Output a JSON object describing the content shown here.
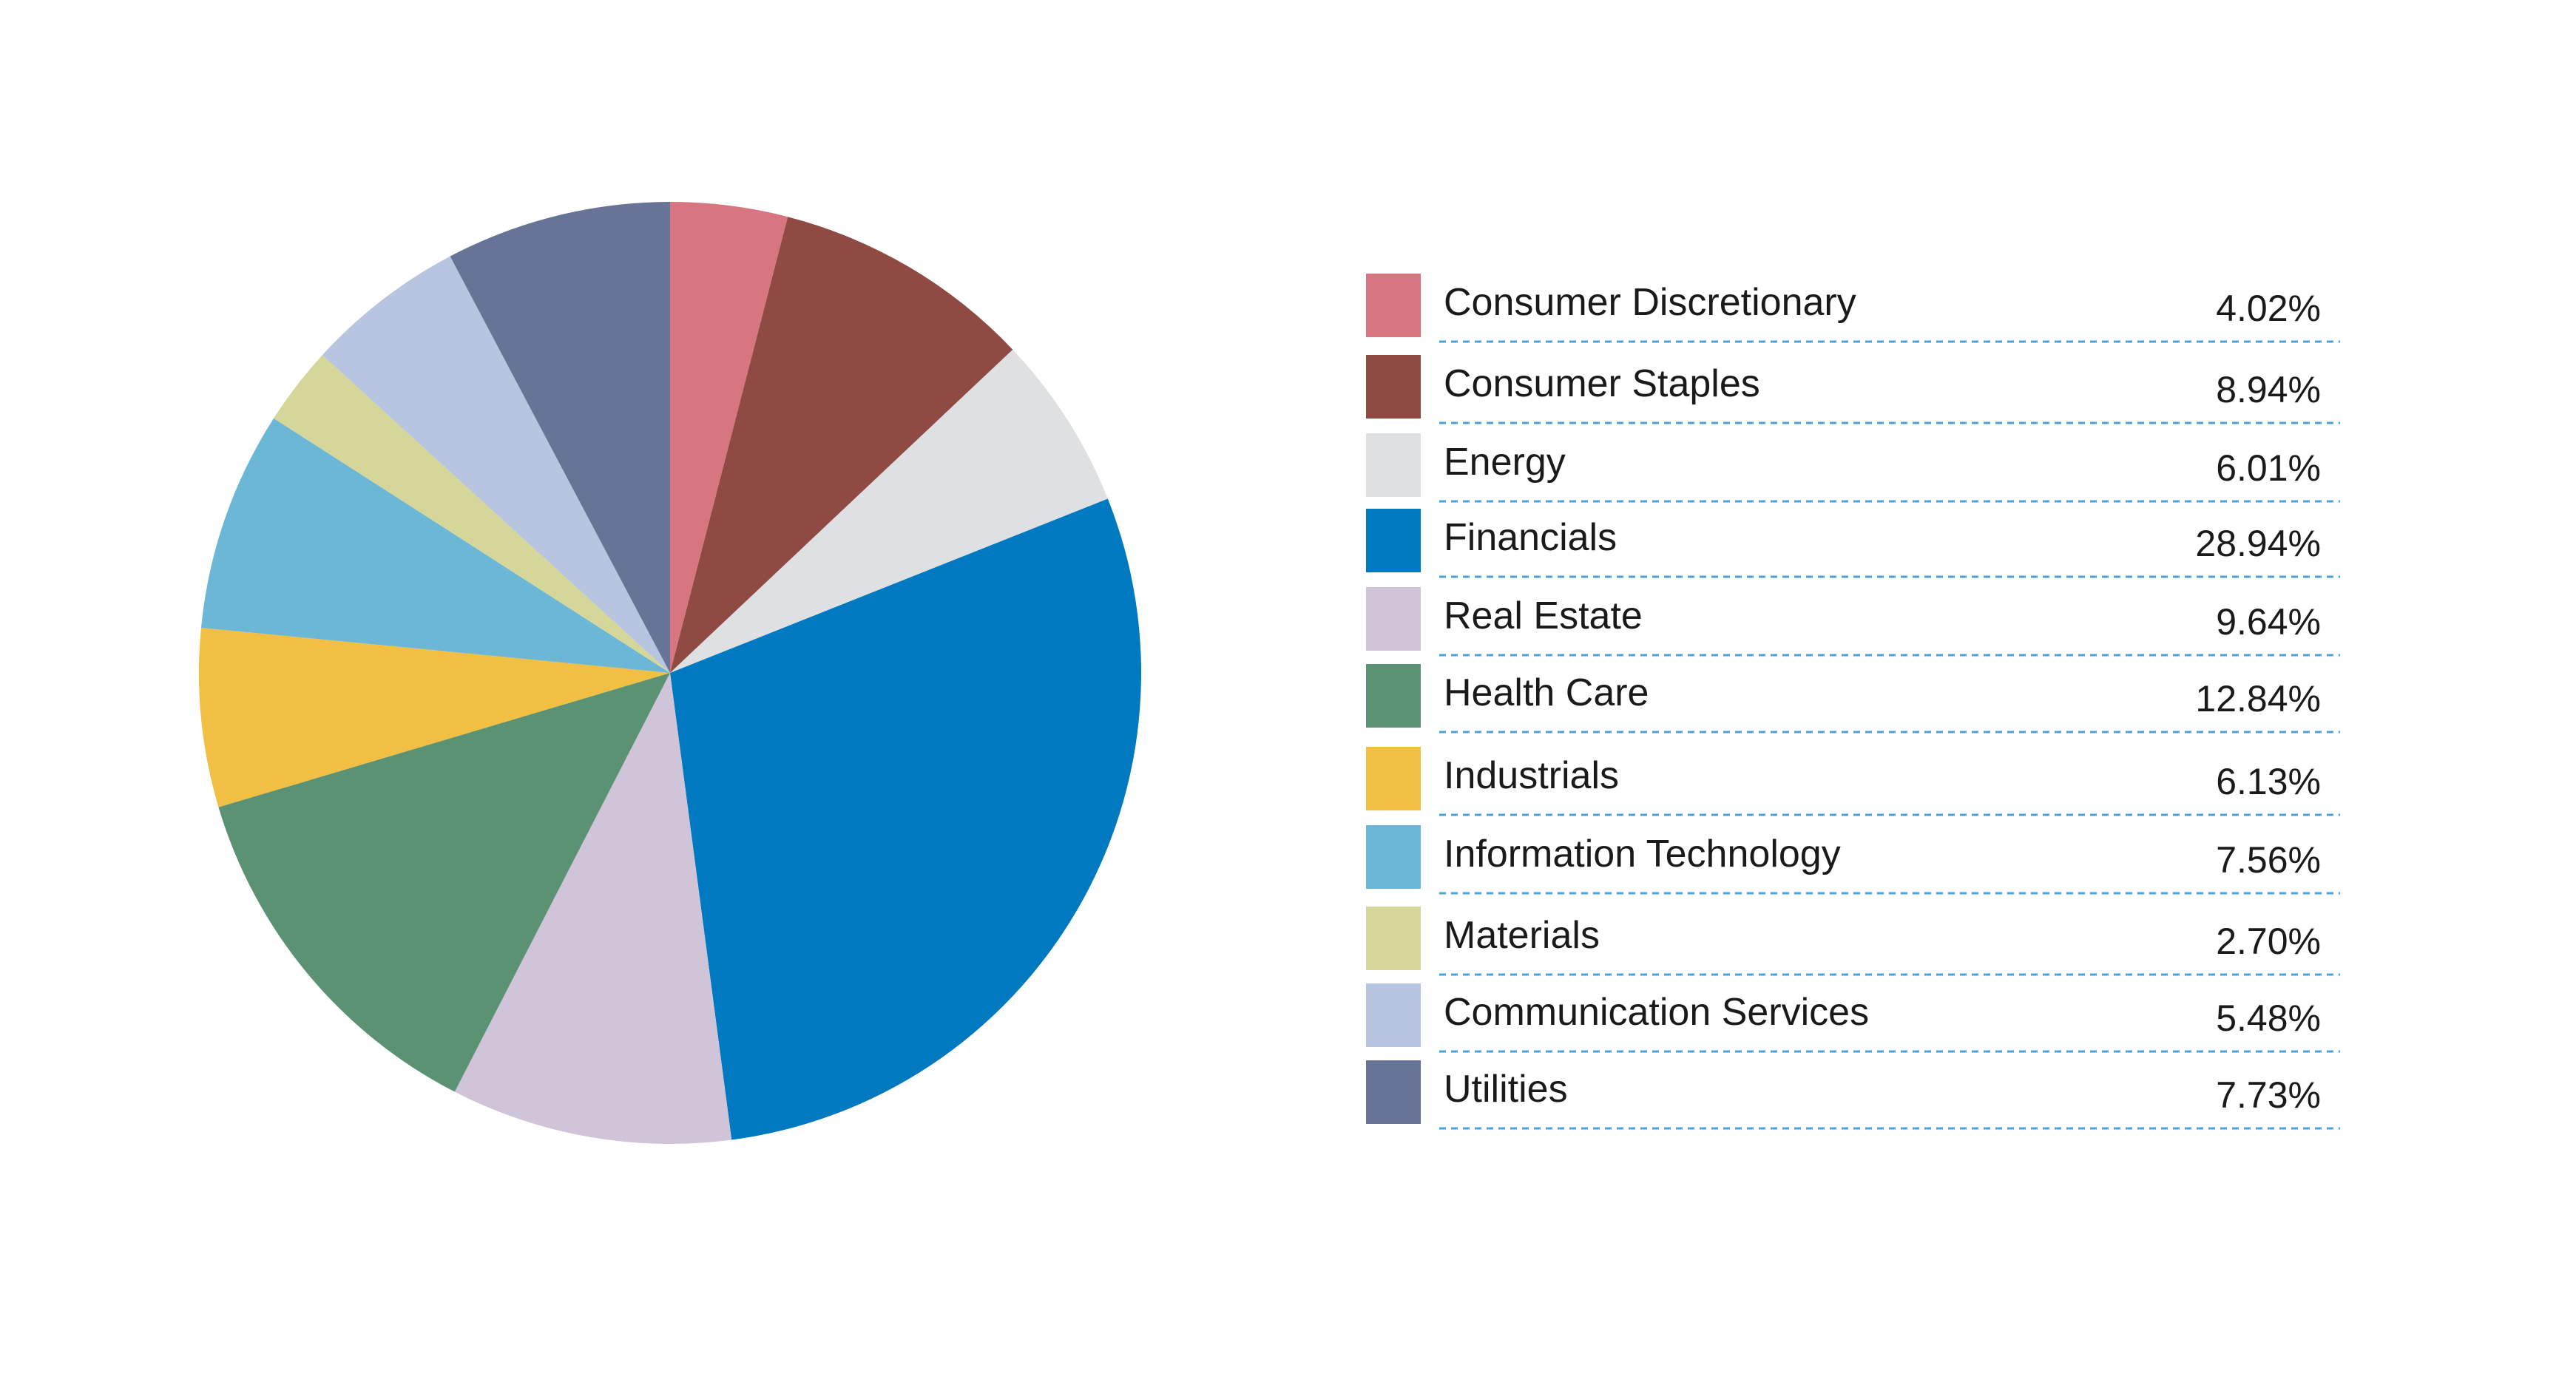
{
  "chart_data": {
    "type": "pie",
    "slices": [
      {
        "label": "Consumer Discretionary",
        "value": 4.02,
        "display": "4.02%",
        "color": "#d77580"
      },
      {
        "label": "Consumer Staples",
        "value": 8.94,
        "display": "8.94%",
        "color": "#8f4a43"
      },
      {
        "label": "Energy",
        "value": 6.01,
        "display": "6.01%",
        "color": "#dfe0e2"
      },
      {
        "label": "Financials",
        "value": 28.94,
        "display": "28.94%",
        "color": "#0079c1"
      },
      {
        "label": "Real Estate",
        "value": 9.64,
        "display": "9.64%",
        "color": "#d0c4d9"
      },
      {
        "label": "Health Care",
        "value": 12.84,
        "display": "12.84%",
        "color": "#5b9274"
      },
      {
        "label": "Industrials",
        "value": 6.13,
        "display": "6.13%",
        "color": "#f1bf43"
      },
      {
        "label": "Information Technology",
        "value": 7.56,
        "display": "7.56%",
        "color": "#6cb7d5"
      },
      {
        "label": "Materials",
        "value": 2.7,
        "display": "2.70%",
        "color": "#d5d69a"
      },
      {
        "label": "Communication Services",
        "value": 5.48,
        "display": "5.48%",
        "color": "#b7c5e0"
      },
      {
        "label": "Utilities",
        "value": 7.73,
        "display": "7.73%",
        "color": "#677496"
      }
    ],
    "legend_position": "right"
  }
}
